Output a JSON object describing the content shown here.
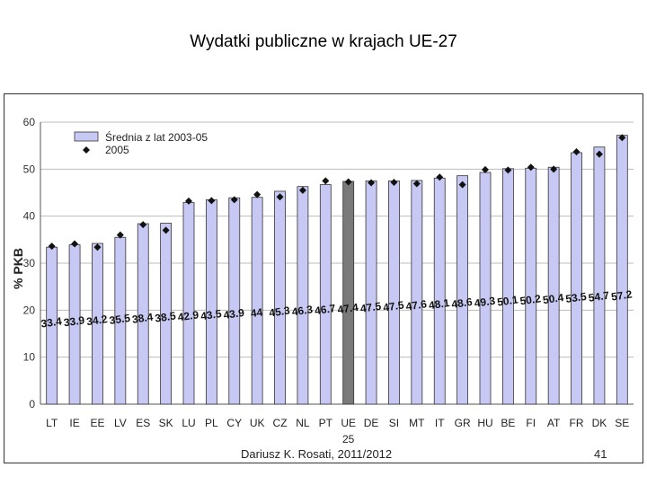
{
  "slide": {
    "title": "Wydatki publiczne w krajach UE-27",
    "footer_author": "Dariusz K. Rosati, 2011/2012",
    "page_number": "41"
  },
  "colors": {
    "bar_fill": "#c8c8f5",
    "bar_highlight": "#7a7a7a",
    "marker": "#111111",
    "grid": "#bdbdbd"
  },
  "chart_data": {
    "type": "bar",
    "title": "",
    "xlabel": "",
    "ylabel": "% PKB",
    "ylim": [
      0,
      60
    ],
    "yticks": [
      0,
      10,
      20,
      30,
      40,
      50,
      60
    ],
    "grid": true,
    "legend_position": "top-left",
    "categories": [
      "LT",
      "IE",
      "EE",
      "LV",
      "ES",
      "SK",
      "LU",
      "PL",
      "CY",
      "UK",
      "CZ",
      "NL",
      "PT",
      "UE 25",
      "DE",
      "SI",
      "MT",
      "IT",
      "GR",
      "HU",
      "BE",
      "FI",
      "AT",
      "FR",
      "DK",
      "SE"
    ],
    "highlight_category": "UE 25",
    "series": [
      {
        "name": "Średnia z lat 2003-05",
        "kind": "bar",
        "values": [
          33.4,
          33.9,
          34.2,
          35.5,
          38.4,
          38.5,
          42.9,
          43.5,
          43.9,
          44,
          45.3,
          46.3,
          46.7,
          47.4,
          47.5,
          47.5,
          47.6,
          48.1,
          48.6,
          49.3,
          50.1,
          50.2,
          50.4,
          53.5,
          54.7,
          57.2
        ],
        "value_labels": [
          "33.4",
          "33.9",
          "34.2",
          "35.5",
          "38.4",
          "38.5",
          "42.9",
          "43.5",
          "43.9",
          "44",
          "45.3",
          "46.3",
          "46.7",
          "47.4",
          "47.5",
          "47.5",
          "47.6",
          "48.1",
          "48.6",
          "49.3",
          "50.1",
          "50.2",
          "50.4",
          "53.5",
          "54.7",
          "57.2"
        ]
      },
      {
        "name": "2005",
        "kind": "marker",
        "values": [
          33.6,
          34.1,
          33.4,
          36.0,
          38.2,
          37.0,
          43.2,
          43.3,
          43.5,
          44.6,
          44.1,
          45.5,
          47.5,
          47.3,
          47.1,
          47.2,
          46.9,
          48.3,
          46.7,
          49.9,
          49.8,
          50.4,
          50.0,
          53.7,
          53.2,
          56.7
        ]
      }
    ]
  }
}
